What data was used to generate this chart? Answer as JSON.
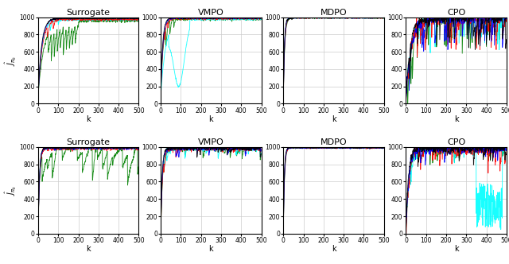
{
  "titles": [
    "Surrogate",
    "VMPO",
    "MDPO",
    "CPO"
  ],
  "ylabel": "$\\widehat{J}_{\\pi_k}$",
  "xlabel": "k",
  "xlim": [
    0,
    500
  ],
  "ylim": [
    0,
    1000
  ],
  "yticks": [
    0,
    200,
    400,
    600,
    800,
    1000
  ],
  "xticks": [
    0,
    100,
    200,
    300,
    400,
    500
  ],
  "colors": [
    "blue",
    "red",
    "green",
    "black",
    "cyan"
  ],
  "n_steps": 500,
  "grid_color": "#cccccc",
  "lw": 0.6
}
